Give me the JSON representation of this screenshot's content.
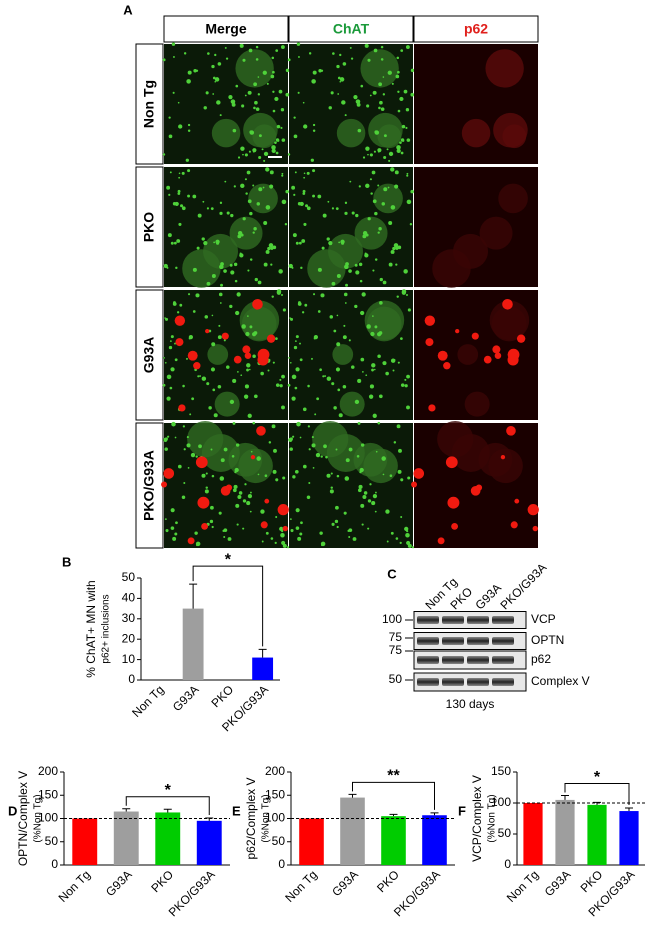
{
  "panel_a": {
    "letter": "A",
    "columns": [
      "Merge",
      "ChAT",
      "p62"
    ],
    "rows": [
      "Non Tg",
      "PKO",
      "G93A",
      "PKO/G93A"
    ]
  },
  "panel_c": {
    "letter": "C",
    "lanes": [
      "Non Tg",
      "PKO",
      "G93A",
      "PKO/G93A"
    ],
    "markers": [
      100,
      75,
      75,
      50
    ],
    "bands": [
      "VCP",
      "OPTN",
      "p62",
      "Complex V"
    ],
    "footer": "130 days"
  },
  "chart_data": [
    {
      "type": "bar",
      "letter": "B",
      "ylabel": [
        "% ChAT+ MN with",
        "p62+ inclusions"
      ],
      "categories": [
        "Non Tg",
        "G93A",
        "PKO",
        "PKO/G93A"
      ],
      "values": [
        0,
        35,
        0,
        11
      ],
      "errors": [
        null,
        12,
        null,
        4
      ],
      "colors": [
        "#9e9e9e",
        "#9e9e9e",
        "#9e9e9e",
        "#0000ff"
      ],
      "ylim": [
        0,
        50
      ],
      "yticks": [
        0,
        10,
        20,
        30,
        40,
        50
      ],
      "significance": "*"
    },
    {
      "type": "bar",
      "letter": "D",
      "ylabel": [
        "OPTN/Complex V",
        "(%Non Tg)"
      ],
      "categories": [
        "Non Tg",
        "G93A",
        "PKO",
        "PKO/G93A"
      ],
      "values": [
        100,
        115,
        113,
        95
      ],
      "errors": [
        null,
        6,
        7,
        6
      ],
      "colors": [
        "#ff0000",
        "#9e9e9e",
        "#00cc00",
        "#0000ff"
      ],
      "ylim": [
        0,
        200
      ],
      "yticks": [
        0,
        50,
        100,
        150,
        200
      ],
      "reference": 100,
      "significance": "*"
    },
    {
      "type": "bar",
      "letter": "E",
      "ylabel": [
        "p62/Complex V",
        "(%Non Tg)"
      ],
      "categories": [
        "Non Tg",
        "G93A",
        "PKO",
        "PKO/G93A"
      ],
      "values": [
        100,
        145,
        105,
        107
      ],
      "errors": [
        null,
        7,
        4,
        5
      ],
      "colors": [
        "#ff0000",
        "#9e9e9e",
        "#00cc00",
        "#0000ff"
      ],
      "ylim": [
        0,
        200
      ],
      "yticks": [
        0,
        50,
        100,
        150,
        200
      ],
      "reference": 100,
      "significance": "**"
    },
    {
      "type": "bar",
      "letter": "F",
      "ylabel": [
        "VCP/Complex V",
        "(%Non Tg)"
      ],
      "categories": [
        "Non Tg",
        "G93A",
        "PKO",
        "PKO/G93A"
      ],
      "values": [
        100,
        105,
        97,
        87
      ],
      "errors": [
        null,
        7,
        4,
        5
      ],
      "colors": [
        "#ff0000",
        "#9e9e9e",
        "#00cc00",
        "#0000ff"
      ],
      "ylim": [
        0,
        150
      ],
      "yticks": [
        0,
        50,
        100,
        150
      ],
      "reference": 100,
      "significance": "*"
    }
  ]
}
